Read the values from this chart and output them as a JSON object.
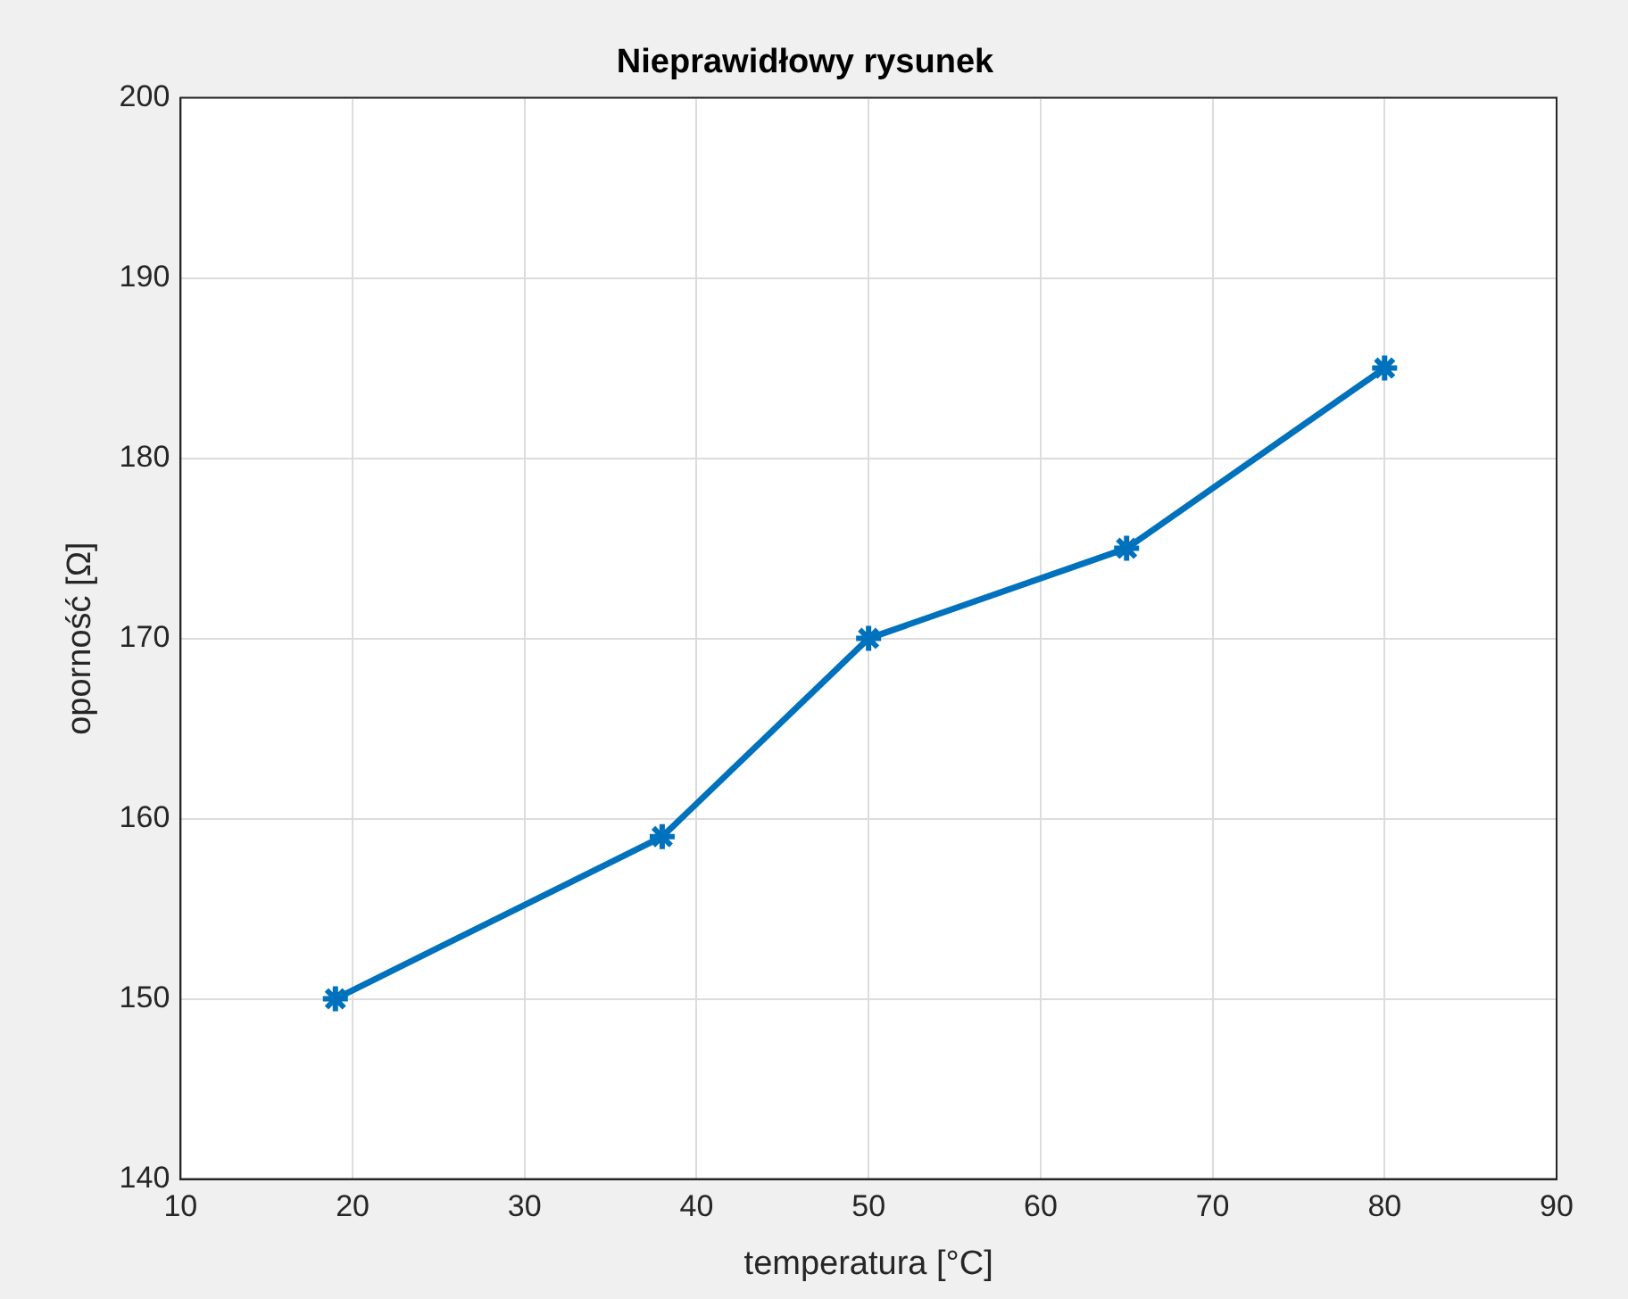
{
  "chart_data": {
    "type": "line",
    "title": "Nieprawidłowy rysunek",
    "xlabel": "temperatura [°C]",
    "ylabel": "oporność [Ω]",
    "x": [
      19,
      38,
      50,
      65,
      80
    ],
    "series": [
      {
        "color": "#0072bd",
        "values": [
          150,
          159,
          170,
          175,
          185
        ]
      }
    ],
    "xlim": [
      10,
      90
    ],
    "xticks": [
      10,
      20,
      30,
      40,
      50,
      60,
      70,
      80,
      90
    ],
    "ylim": [
      140,
      200
    ],
    "yticks": [
      140,
      150,
      160,
      170,
      180,
      190,
      200
    ],
    "grid": true,
    "marker": "cross",
    "line_style": "solid"
  }
}
